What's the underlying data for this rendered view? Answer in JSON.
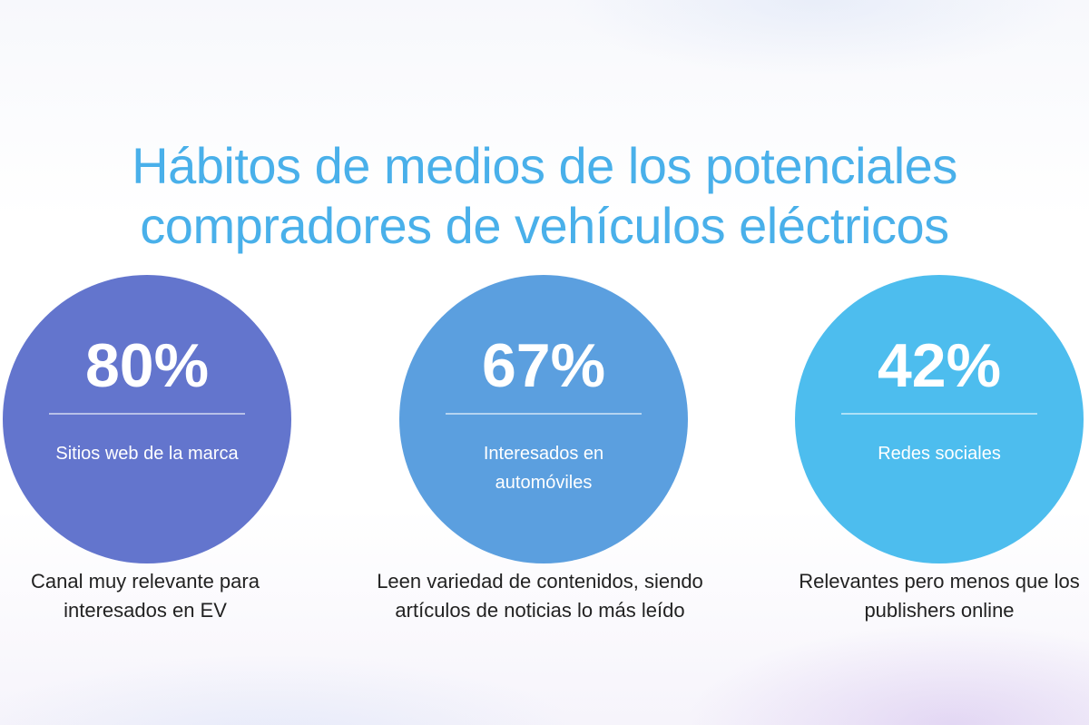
{
  "title": {
    "line1": "Hábitos de medios de los potenciales",
    "line2": "compradores de vehículos eléctricos"
  },
  "stats": [
    {
      "percent": "80%",
      "label": "Sitios web de la marca",
      "description": "Canal muy relevante para interesados en EV",
      "color": "#6375cd"
    },
    {
      "percent": "67%",
      "label": "Interesados en automóviles",
      "description": "Leen variedad de contenidos, siendo artículos de noticias lo más leído",
      "color": "#5b9fdf"
    },
    {
      "percent": "42%",
      "label": "Redes sociales",
      "description": "Relevantes pero menos que los publishers online",
      "color": "#4dbdee"
    }
  ],
  "colors": {
    "title": "#49b0ea",
    "text": "#222222"
  }
}
